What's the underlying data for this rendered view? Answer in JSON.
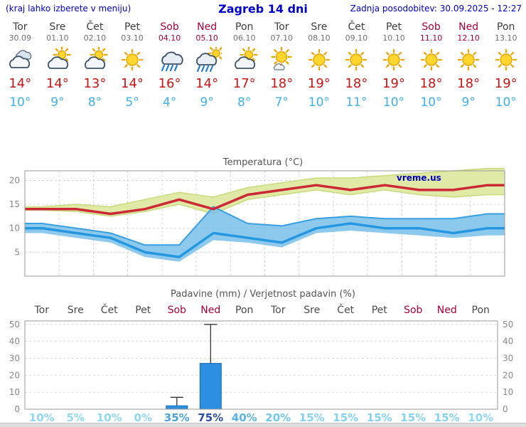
{
  "header": {
    "left": "(kraj lahko izberete v meniju)",
    "title": "Zagreb 14 dni",
    "right": "Zadnja posodobitev: 30.09.2025 - 12:27"
  },
  "brand": "vreme.us",
  "colors": {
    "header_blue": "#0000cc",
    "weekend_red": "#a80038",
    "tmax_red": "#cc1414",
    "tmin_blue": "#3fb0f2",
    "temp_max_line": "#cc2936",
    "temp_min_line": "#2597e0",
    "max_band": "#e0eaa6",
    "min_band": "#79c0ea",
    "precip_bar": "#2d8fe0"
  },
  "days": [
    {
      "name": "Tor",
      "date": "30.09",
      "weekend": false,
      "icon": "cloudy",
      "tmax": "14°",
      "tmin": "10°",
      "prob": "10%",
      "prob_color": "#8fd8f2"
    },
    {
      "name": "Sre",
      "date": "01.10",
      "weekend": false,
      "icon": "partly-cloudy",
      "tmax": "14°",
      "tmin": "9°",
      "prob": "5%",
      "prob_color": "#8fd8f2"
    },
    {
      "name": "Čet",
      "date": "02.10",
      "weekend": false,
      "icon": "partly-cloudy",
      "tmax": "13°",
      "tmin": "8°",
      "prob": "10%",
      "prob_color": "#8fd8f2"
    },
    {
      "name": "Pet",
      "date": "03.10",
      "weekend": false,
      "icon": "sunny",
      "tmax": "14°",
      "tmin": "5°",
      "prob": "0%",
      "prob_color": "#8fd8f2"
    },
    {
      "name": "Sob",
      "date": "04.10",
      "weekend": true,
      "icon": "rain",
      "tmax": "16°",
      "tmin": "4°",
      "prob": "35%",
      "prob_color": "#48a2d8"
    },
    {
      "name": "Ned",
      "date": "05.10",
      "weekend": true,
      "icon": "rain-sun",
      "tmax": "14°",
      "tmin": "9°",
      "prob": "75%",
      "prob_color": "#2a4fa5"
    },
    {
      "name": "Pon",
      "date": "06.10",
      "weekend": false,
      "icon": "partly-cloudy",
      "tmax": "17°",
      "tmin": "8°",
      "prob": "40%",
      "prob_color": "#58b4e6"
    },
    {
      "name": "Tor",
      "date": "07.10",
      "weekend": false,
      "icon": "sunny-small-cloud",
      "tmax": "18°",
      "tmin": "7°",
      "prob": "20%",
      "prob_color": "#70c8ec"
    },
    {
      "name": "Sre",
      "date": "08.10",
      "weekend": false,
      "icon": "sunny",
      "tmax": "19°",
      "tmin": "10°",
      "prob": "15%",
      "prob_color": "#84d2f0"
    },
    {
      "name": "Čet",
      "date": "09.10",
      "weekend": false,
      "icon": "sunny",
      "tmax": "18°",
      "tmin": "11°",
      "prob": "15%",
      "prob_color": "#84d2f0"
    },
    {
      "name": "Pet",
      "date": "10.10",
      "weekend": false,
      "icon": "sunny",
      "tmax": "19°",
      "tmin": "10°",
      "prob": "15%",
      "prob_color": "#84d2f0"
    },
    {
      "name": "Sob",
      "date": "11.10",
      "weekend": true,
      "icon": "sunny",
      "tmax": "18°",
      "tmin": "10°",
      "prob": "15%",
      "prob_color": "#84d2f0"
    },
    {
      "name": "Ned",
      "date": "12.10",
      "weekend": true,
      "icon": "sunny",
      "tmax": "18°",
      "tmin": "9°",
      "prob": "15%",
      "prob_color": "#84d2f0"
    },
    {
      "name": "Pon",
      "date": "13.10",
      "weekend": false,
      "icon": "sunny",
      "tmax": "19°",
      "tmin": "10°",
      "prob": "10%",
      "prob_color": "#8fd8f2"
    }
  ],
  "chart_data": [
    {
      "type": "line",
      "title": "Temperatura (°C)",
      "x": [
        "30.09",
        "01.10",
        "02.10",
        "03.10",
        "04.10",
        "05.10",
        "06.10",
        "07.10",
        "08.10",
        "09.10",
        "10.10",
        "11.10",
        "12.10",
        "13.10"
      ],
      "series": [
        {
          "name": "tmax",
          "values": [
            14,
            14,
            13,
            14,
            16,
            14,
            17,
            18,
            19,
            18,
            19,
            18,
            18,
            19
          ]
        },
        {
          "name": "tmax_upper",
          "values": [
            14.5,
            15,
            14.5,
            16,
            17.5,
            16.5,
            18.5,
            19.5,
            20.5,
            20.5,
            21,
            21.5,
            22,
            22.5
          ]
        },
        {
          "name": "tmax_lower",
          "values": [
            13.8,
            13.5,
            12.5,
            13.5,
            15,
            13,
            16,
            17,
            18,
            17,
            18,
            17,
            16.5,
            17
          ]
        },
        {
          "name": "tmin",
          "values": [
            10,
            9,
            8,
            5,
            4,
            9,
            8,
            7,
            10,
            11,
            10,
            10,
            9,
            10
          ]
        },
        {
          "name": "tmin_upper",
          "values": [
            11,
            10,
            9,
            6.5,
            6.5,
            14.5,
            11,
            10.5,
            12,
            12.5,
            12,
            12,
            12,
            13
          ]
        },
        {
          "name": "tmin_lower",
          "values": [
            9,
            8,
            7,
            4,
            3,
            7.5,
            7,
            6,
            9,
            9.5,
            9,
            8.5,
            8,
            8.5
          ]
        }
      ],
      "ylim": [
        0,
        22
      ],
      "yticks": [
        5,
        10,
        15,
        20
      ],
      "grid": true,
      "legend": "none"
    },
    {
      "type": "bar",
      "title": "Padavine (mm) / Verjetnost padavin (%)",
      "categories": [
        "Tor",
        "Sre",
        "Čet",
        "Pet",
        "Sob",
        "Ned",
        "Pon",
        "Tor",
        "Sre",
        "Čet",
        "Pet",
        "Sob",
        "Ned",
        "Pon"
      ],
      "values": [
        0,
        0,
        0,
        0,
        2,
        27,
        0,
        0,
        0,
        0,
        0,
        0,
        0,
        0
      ],
      "whiskers": [
        0,
        0,
        0,
        0,
        7,
        50,
        0,
        0,
        0,
        0,
        0,
        0,
        0,
        0
      ],
      "probabilities_pct": [
        10,
        5,
        10,
        0,
        35,
        75,
        40,
        20,
        15,
        15,
        15,
        15,
        15,
        10
      ],
      "ylim": [
        0,
        52
      ],
      "yticks": [
        0,
        10,
        20,
        30,
        40,
        50
      ],
      "grid": true
    }
  ]
}
